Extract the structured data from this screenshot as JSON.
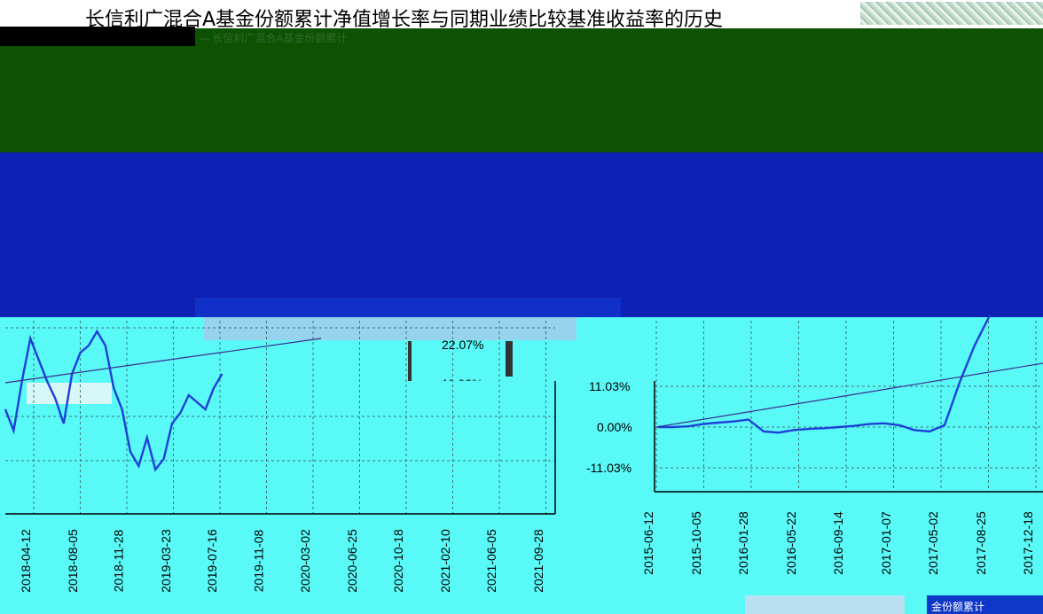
{
  "chart_data": [
    {
      "type": "line",
      "title": "长信利广混合A基金份额累计净值增长率与同期业绩比较基准收益率的历史",
      "yticks": [
        "22.07%",
        "11.03%"
      ],
      "xticks": [
        "2018-04-12",
        "2018-08-05",
        "2018-11-28",
        "2019-03-23",
        "2019-07-16",
        "2019-11-08",
        "2020-03-02",
        "2020-06-25",
        "2020-10-18",
        "2021-02-10",
        "2021-06-05",
        "2021-09-28"
      ],
      "series": [
        {
          "color": "#1f3fd8",
          "values": [
            0.02,
            -0.04,
            0.1,
            0.22,
            0.16,
            0.1,
            0.05,
            -0.02,
            0.12,
            0.18,
            0.2,
            0.24,
            0.2,
            0.08,
            0.02,
            -0.1,
            -0.14,
            -0.06,
            -0.15,
            -0.12,
            -0.02,
            0.01,
            0.06,
            0.04,
            0.02,
            0.08,
            0.12
          ]
        }
      ]
    },
    {
      "type": "line",
      "yticks": [
        "11.03%",
        "0.00%",
        "-11.03%"
      ],
      "xticks": [
        "2015-06-12",
        "2015-10-05",
        "2016-01-28",
        "2016-05-22",
        "2016-09-14",
        "2017-01-07",
        "2017-05-02",
        "2017-08-25",
        "2017-12-18"
      ],
      "series": [
        {
          "color": "#1f3fd8",
          "values": [
            0.0,
            0.0,
            0.2,
            0.8,
            1.2,
            1.5,
            2.0,
            -1.2,
            -1.5,
            -0.8,
            -0.5,
            -0.3,
            0.0,
            0.3,
            0.8,
            1.0,
            0.5,
            -0.8,
            -1.2,
            0.5,
            12.0,
            22.0,
            30.0
          ]
        }
      ]
    }
  ],
  "legend_fragment": "金份额累计"
}
